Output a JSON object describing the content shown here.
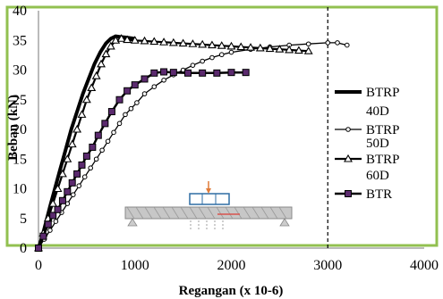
{
  "chart_data": {
    "type": "line",
    "xlabel": "Regangan (x 10-6)",
    "ylabel": "Beban (kN)",
    "xlim": [
      0,
      4000
    ],
    "ylim": [
      0,
      40
    ],
    "xticks": [
      "0",
      "1000",
      "2000",
      "3000",
      "4000"
    ],
    "yticks": [
      "0",
      "5",
      "10",
      "15",
      "20",
      "25",
      "30",
      "35",
      "40"
    ],
    "grid": false,
    "legend_position": "right",
    "reference_line": {
      "x": 3000,
      "style": "dashed"
    },
    "series": [
      {
        "name": "BTRP 40D",
        "marker": "none",
        "x": [
          0,
          40,
          80,
          120,
          170,
          220,
          280,
          340,
          400,
          460,
          520,
          580,
          640,
          700,
          750,
          800,
          850,
          900,
          950,
          1000
        ],
        "y": [
          0,
          2,
          4.5,
          7,
          10,
          13,
          16.5,
          20,
          23,
          26,
          28.5,
          31,
          33,
          34.5,
          35.3,
          35.7,
          35.6,
          35.5,
          35.4,
          35.3
        ]
      },
      {
        "name": "BTRP 50D",
        "marker": "circle-open",
        "x": [
          0,
          60,
          120,
          180,
          240,
          300,
          360,
          420,
          480,
          540,
          600,
          660,
          720,
          780,
          840,
          900,
          960,
          1020,
          1100,
          1200,
          1300,
          1400,
          1500,
          1600,
          1700,
          1800,
          1900,
          2000,
          2200,
          2400,
          2600,
          2800,
          3000,
          3100,
          3200
        ],
        "y": [
          0,
          1.5,
          3,
          4.5,
          6,
          7.5,
          9,
          10.5,
          12,
          13.5,
          15,
          16.5,
          18,
          19.5,
          21,
          22.5,
          23.5,
          24.5,
          26,
          27.2,
          28.3,
          29.2,
          30,
          30.8,
          31.5,
          32.1,
          32.6,
          33,
          33.5,
          33.9,
          34.2,
          34.4,
          34.6,
          34.6,
          34.2
        ]
      },
      {
        "name": "BTRP 60D",
        "marker": "triangle-open",
        "x": [
          0,
          50,
          100,
          150,
          200,
          250,
          300,
          350,
          400,
          450,
          500,
          550,
          600,
          650,
          700,
          750,
          800,
          860,
          920,
          1000,
          1100,
          1200,
          1300,
          1400,
          1500,
          1600,
          1700,
          1800,
          1900,
          2000,
          2100,
          2200,
          2300,
          2400,
          2500,
          2600,
          2700,
          2800
        ],
        "y": [
          0,
          2.5,
          5,
          7.5,
          10,
          12.5,
          15,
          17.5,
          20,
          22.5,
          25,
          27,
          29,
          31,
          32.7,
          34,
          35,
          35.3,
          35.1,
          35,
          34.9,
          34.8,
          34.7,
          34.6,
          34.5,
          34.4,
          34.3,
          34.2,
          34.1,
          34,
          33.9,
          33.8,
          33.7,
          33.6,
          33.5,
          33.4,
          33.3,
          33.2
        ]
      },
      {
        "name": "BTR",
        "marker": "square-filled",
        "x": [
          0,
          50,
          100,
          150,
          200,
          250,
          300,
          350,
          400,
          450,
          500,
          560,
          620,
          690,
          760,
          840,
          920,
          1000,
          1100,
          1200,
          1300,
          1400,
          1550,
          1700,
          1850,
          2000,
          2150
        ],
        "y": [
          0,
          2,
          4,
          5.5,
          6.5,
          8,
          9.5,
          11,
          12.5,
          14,
          15.5,
          17,
          19,
          21,
          23,
          25,
          26.5,
          27.5,
          28.5,
          29.5,
          29.7,
          29.6,
          29.5,
          29.5,
          29.5,
          29.6,
          29.6
        ]
      }
    ]
  },
  "legend": [
    {
      "label": "BTRP"
    },
    {
      "label": "40D"
    },
    {
      "label": "BTRP"
    },
    {
      "label": "50D"
    },
    {
      "label": "BTRP"
    },
    {
      "label": "60D"
    },
    {
      "label": "BTR"
    }
  ],
  "colors": {
    "frame": "#92c050",
    "series": "#000000",
    "btr_fill": "#5b2a6e",
    "inset_beam": "#c7c7c7",
    "inset_box": "#2e6da4"
  }
}
